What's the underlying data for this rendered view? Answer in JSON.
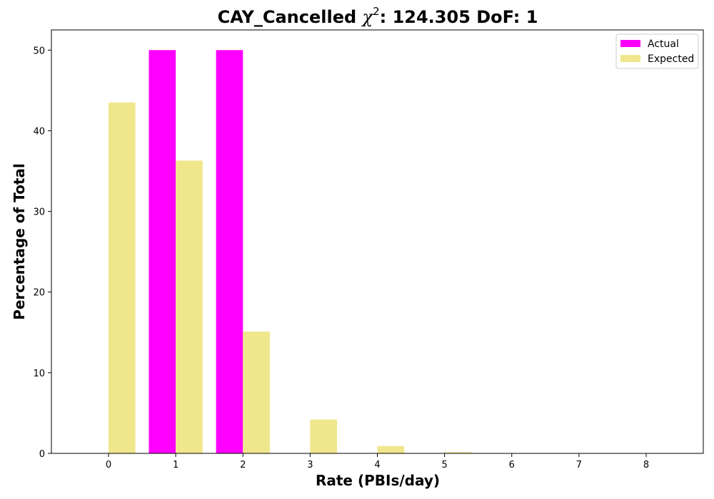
{
  "chart_data": {
    "type": "bar",
    "title_prefix": "CAY_Cancelled ",
    "title_chi": "χ",
    "title_sup": "2",
    "title_suffix": ": 124.305 DoF: 1",
    "xlabel": "Rate (PBIs/day)",
    "ylabel": "Percentage of Total",
    "categories": [
      "0",
      "1",
      "2",
      "3",
      "4",
      "5",
      "6",
      "7",
      "8"
    ],
    "xlim": [
      -0.85,
      8.85
    ],
    "ylim": [
      0,
      52.5
    ],
    "yticks": [
      "0",
      "10",
      "20",
      "30",
      "40",
      "50"
    ],
    "legend_position": "top-right",
    "grid": false,
    "series": [
      {
        "name": "Actual",
        "color": "#ff00ff",
        "values": [
          0,
          50,
          50,
          0,
          0,
          0,
          0,
          0,
          0
        ]
      },
      {
        "name": "Expected",
        "color": "#f0e68c",
        "values": [
          43.5,
          36.3,
          15.1,
          4.2,
          0.9,
          0.15,
          0.02,
          0,
          0
        ]
      }
    ]
  }
}
